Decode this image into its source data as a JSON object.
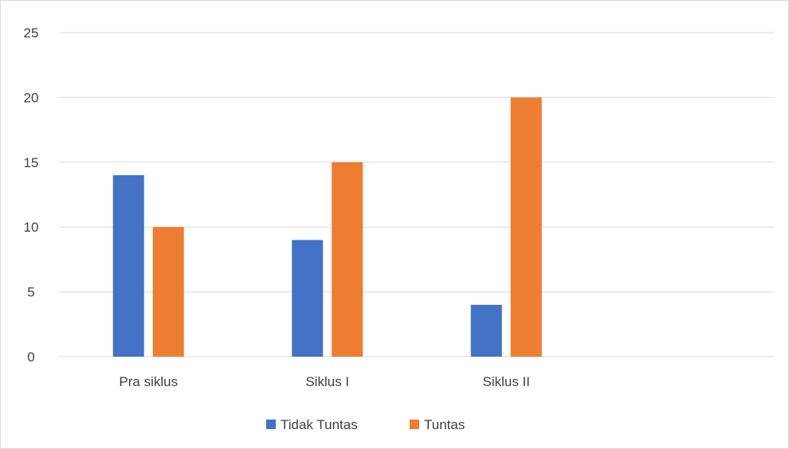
{
  "chart_data": {
    "type": "bar",
    "categories": [
      "Pra siklus",
      "Siklus I",
      "Siklus II",
      ""
    ],
    "series": [
      {
        "name": "Tidak Tuntas",
        "color": "#4472c4",
        "values": [
          14,
          9,
          4,
          null
        ]
      },
      {
        "name": "Tuntas",
        "color": "#ed7d31",
        "values": [
          10,
          15,
          20,
          null
        ]
      }
    ],
    "title": "",
    "xlabel": "",
    "ylabel": "",
    "ylim": [
      0,
      25
    ],
    "yticks": [
      0,
      5,
      10,
      15,
      20,
      25
    ],
    "grid": true,
    "legend_position": "bottom"
  }
}
